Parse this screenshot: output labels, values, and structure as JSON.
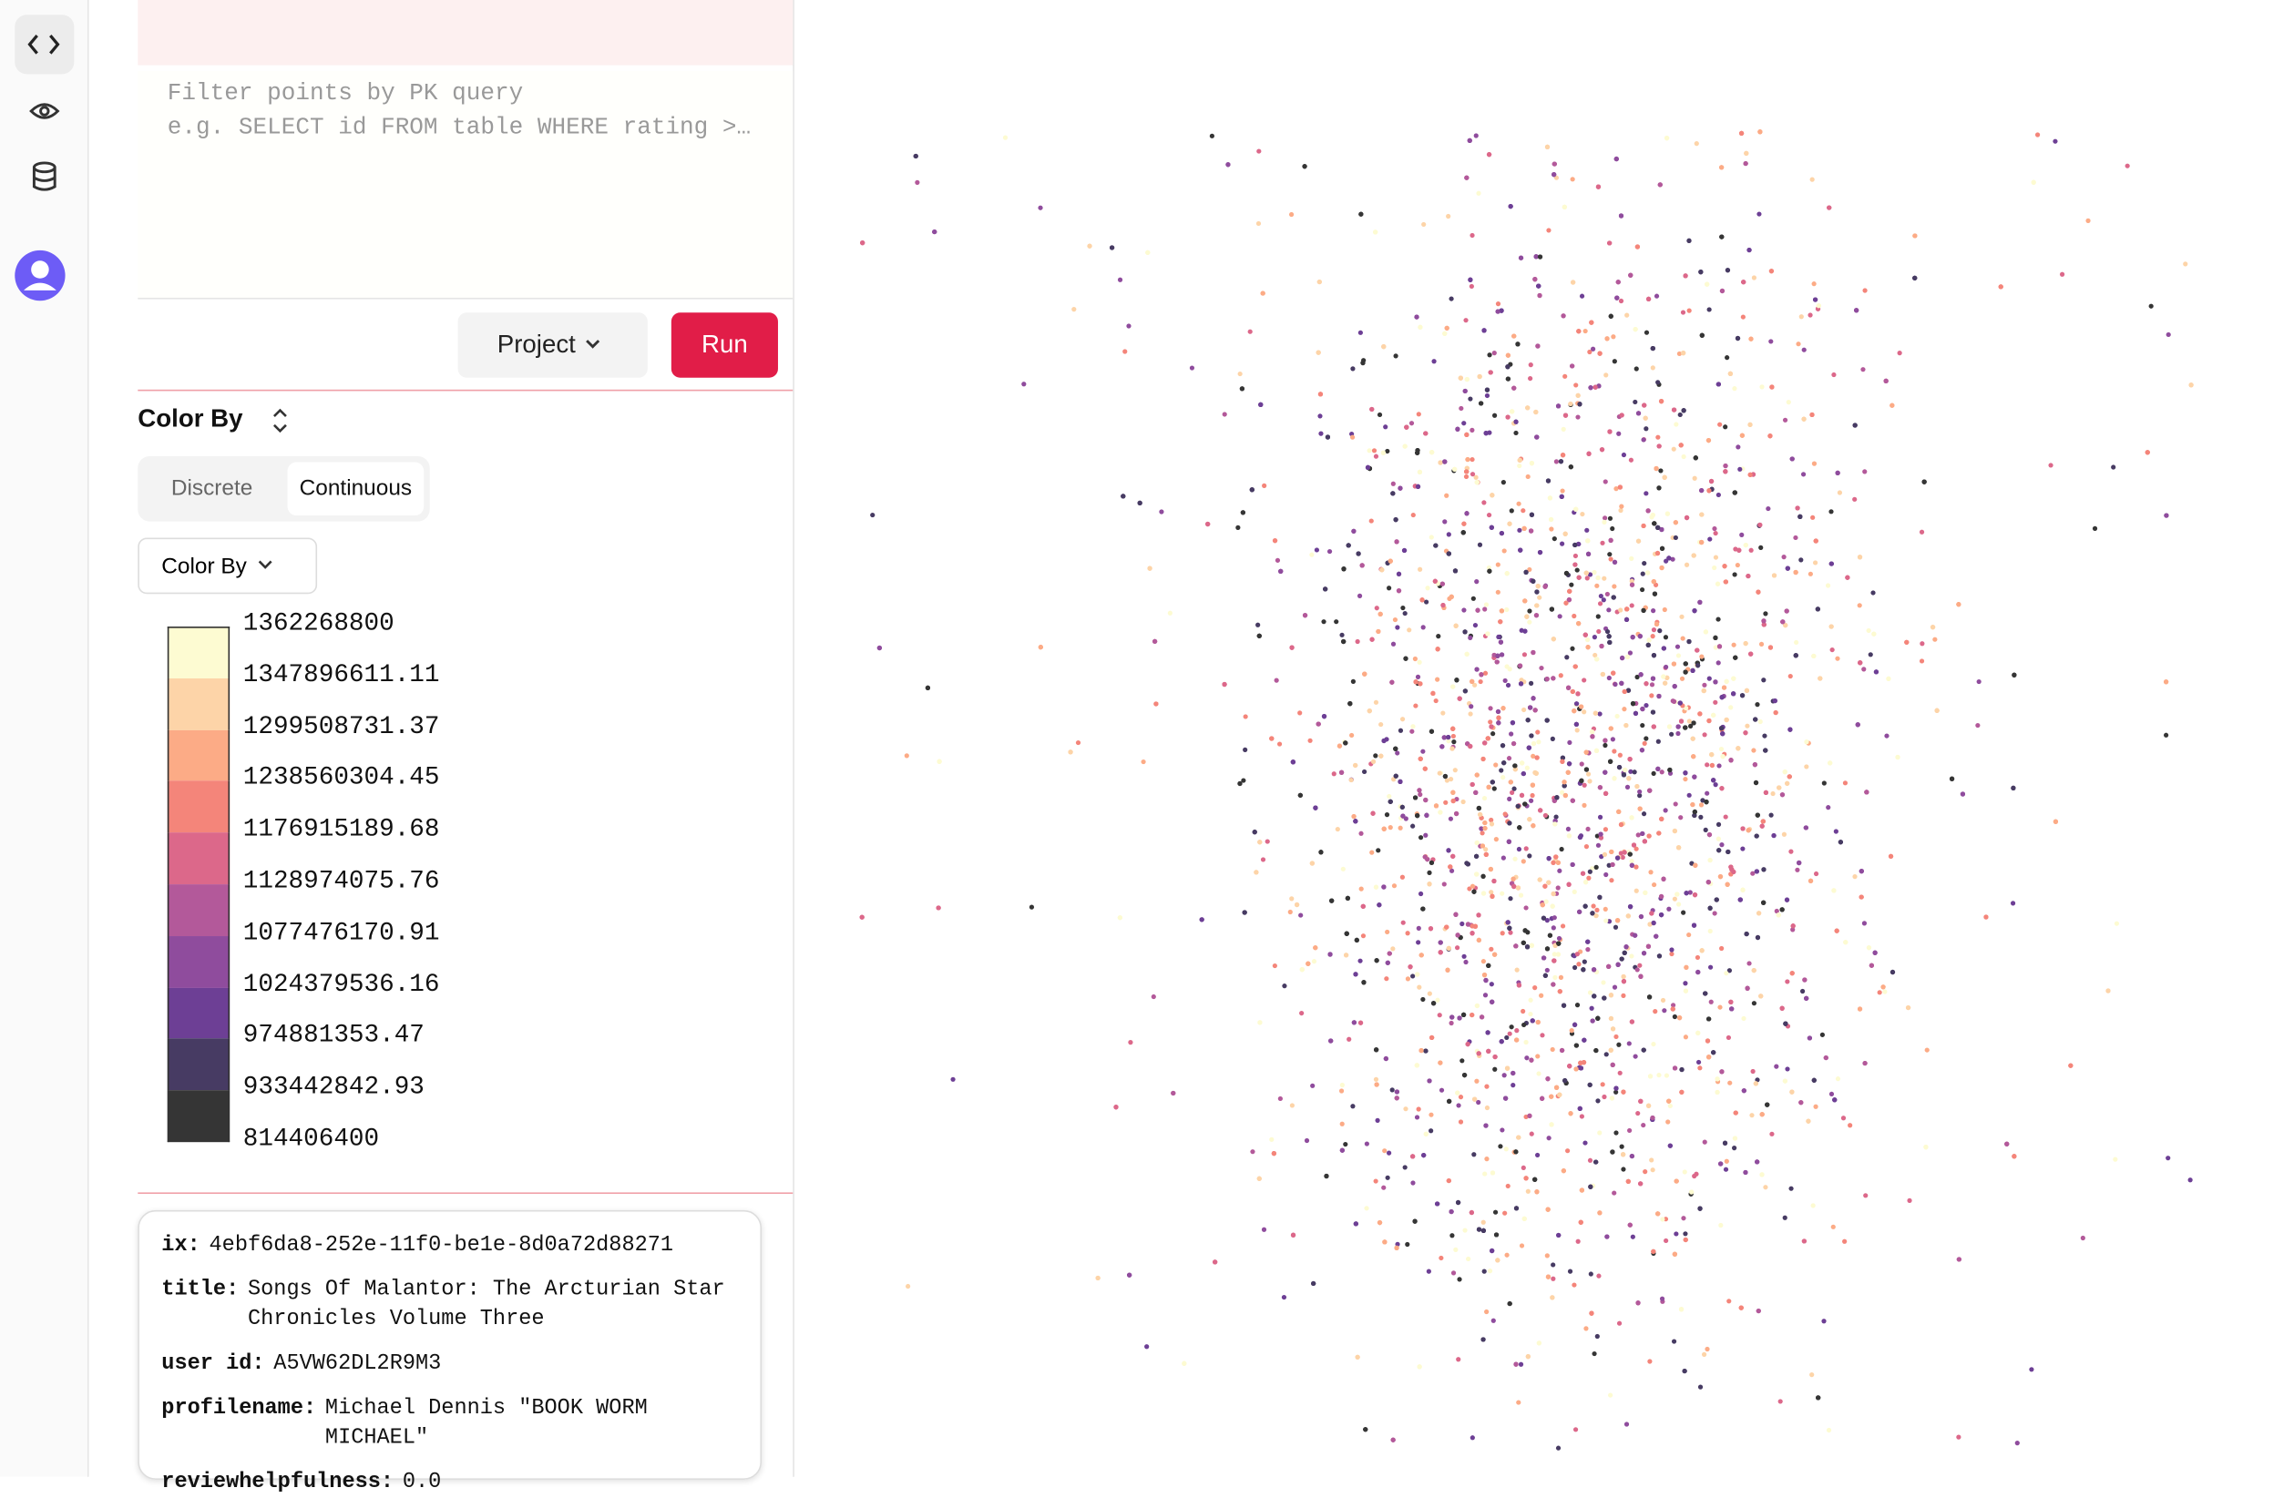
{
  "query": {
    "placeholder": [
      "Filter points by PK query",
      "e.g. SELECT id FROM table WHERE rating >…"
    ]
  },
  "buttons": {
    "project": "Project",
    "run": "Run"
  },
  "color_by": {
    "title": "Color By",
    "tabs": [
      "Discrete",
      "Continuous"
    ],
    "dropdown": "Color By",
    "legend_labels": [
      "1362268800",
      "1347896611.11",
      "1299508731.37",
      "1238560304.45",
      "1176915189.68",
      "1128974075.76",
      "1077476170.91",
      "1024379536.16",
      "974881353.47",
      "933442842.93",
      "814406400"
    ],
    "legend_colors": [
      "#fdfbd2",
      "#fdd4a8",
      "#fcab86",
      "#f4857a",
      "#dc688a",
      "#b3599a",
      "#8f4c9d",
      "#6d3f95",
      "#473b63",
      "#353535"
    ]
  },
  "record": [
    {
      "key": "ix:",
      "value": "4ebf6da8-252e-11f0-be1e-8d0a72d88271"
    },
    {
      "key": "title:",
      "value": "Songs Of Malantor: The Arcturian Star Chronicles Volume Three"
    },
    {
      "key": "user id:",
      "value": "A5VW62DL2R9M3"
    },
    {
      "key": "profilename:",
      "value": "Michael Dennis \"BOOK WORM MICHAEL\""
    },
    {
      "key": "reviewhelpfulness:",
      "value": "0.0"
    }
  ]
}
